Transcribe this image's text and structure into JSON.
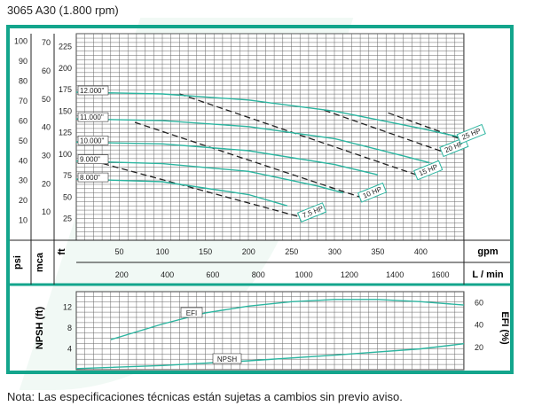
{
  "title": "3065 A30 (1.800 rpm)",
  "note": "Nota: Las especificaciones técnicas están sujetas a cambios sin previo aviso.",
  "colors": {
    "frame": "#13a58c",
    "curve": "#2cb5a0",
    "grid": "#666666",
    "dash": "#222222"
  },
  "axes": {
    "psi_label": "psi",
    "mca_label": "mca",
    "ft_label": "ft",
    "gpm_label": "gpm",
    "lmin_label": "L / min",
    "npsh_label": "NPSH (ft)",
    "efi_label": "EFI (%)",
    "psi_ticks": [
      "10",
      "20",
      "30",
      "40",
      "50",
      "60",
      "70",
      "80",
      "90",
      "100"
    ],
    "mca_ticks": [
      "10",
      "20",
      "30",
      "40",
      "50",
      "60",
      "70"
    ],
    "ft_ticks": [
      "25",
      "50",
      "75",
      "100",
      "125",
      "150",
      "175",
      "200",
      "225"
    ],
    "gpm_ticks": [
      "50",
      "100",
      "150",
      "200",
      "250",
      "300",
      "350",
      "400"
    ],
    "lmin_ticks": [
      "200",
      "400",
      "600",
      "800",
      "1000",
      "1200",
      "1400",
      "1600"
    ],
    "npsh_ticks": [
      "4",
      "8",
      "12"
    ],
    "efi_ticks": [
      "20",
      "40",
      "60"
    ]
  },
  "chart_data": {
    "type": "line",
    "title": "3065 A30 (1.800 rpm)",
    "xlabel": "gpm",
    "ylabel": "ft",
    "xlim": [
      0,
      450
    ],
    "ylim": [
      0,
      240
    ],
    "head_curves": [
      {
        "name": "12.000\"",
        "x": [
          0,
          100,
          200,
          300,
          400,
          445
        ],
        "y": [
          172,
          170,
          163,
          150,
          130,
          120
        ]
      },
      {
        "name": "11.000\"",
        "x": [
          0,
          100,
          200,
          300,
          380,
          410
        ],
        "y": [
          141,
          139,
          132,
          118,
          98,
          90
        ]
      },
      {
        "name": "10.000\"",
        "x": [
          0,
          100,
          200,
          300,
          350
        ],
        "y": [
          114,
          112,
          104,
          88,
          76
        ]
      },
      {
        "name": "9.000\"",
        "x": [
          0,
          100,
          200,
          280,
          310
        ],
        "y": [
          92,
          89,
          80,
          63,
          55
        ]
      },
      {
        "name": "8.000\"",
        "x": [
          0,
          100,
          200,
          245
        ],
        "y": [
          71,
          68,
          53,
          40
        ]
      }
    ],
    "power_lines": [
      {
        "name": "7,5 HP",
        "x": [
          20,
          260
        ],
        "y": [
          92,
          27
        ]
      },
      {
        "name": "10 HP",
        "x": [
          68,
          330
        ],
        "y": [
          137,
          50
        ]
      },
      {
        "name": "15 HP",
        "x": [
          120,
          395
        ],
        "y": [
          170,
          76
        ]
      },
      {
        "name": "20 HP",
        "x": [
          288,
          425
        ],
        "y": [
          151,
          103
        ]
      },
      {
        "name": "25 HP",
        "x": [
          362,
          445
        ],
        "y": [
          148,
          118
        ]
      }
    ],
    "efi": {
      "name": "EFI",
      "x": [
        40,
        100,
        150,
        200,
        250,
        300,
        350,
        400,
        450
      ],
      "y": [
        27,
        41,
        51,
        57,
        61,
        63,
        63,
        61,
        58
      ]
    },
    "npsh": {
      "name": "NPSH",
      "x": [
        0,
        100,
        200,
        300,
        400,
        450
      ],
      "y": [
        0.2,
        0.8,
        1.7,
        2.8,
        4.0,
        5.0
      ]
    }
  }
}
